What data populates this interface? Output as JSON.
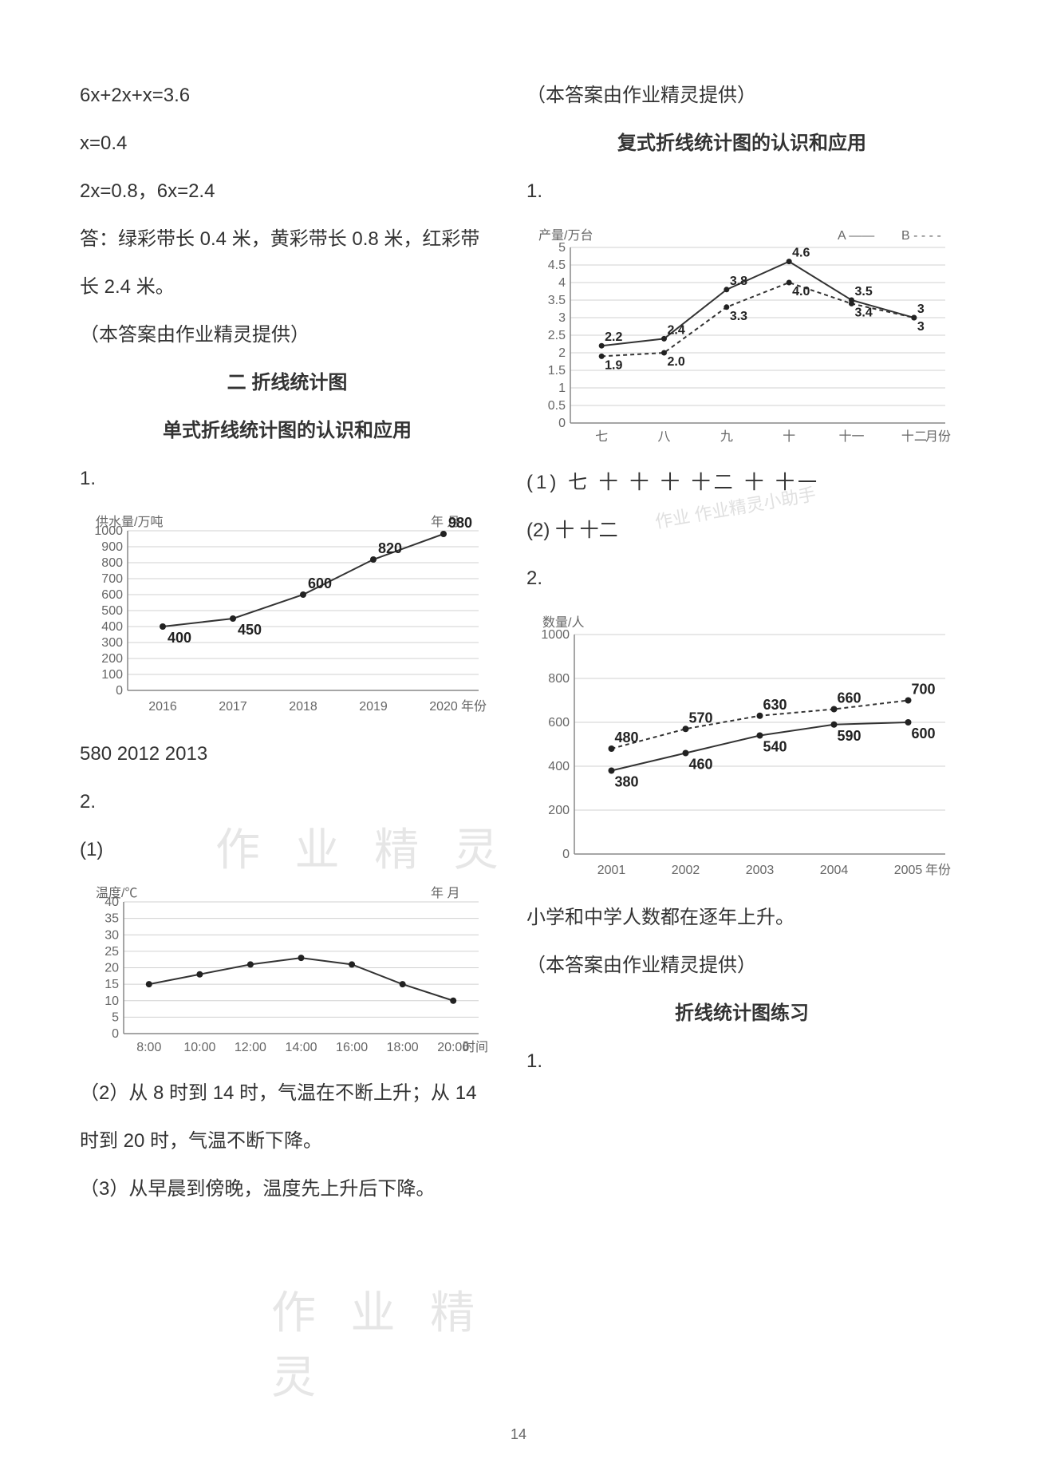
{
  "page_number": "14",
  "left": {
    "eq1": "6x+2x+x=3.6",
    "eq2": "x=0.4",
    "eq3": "2x=0.8，6x=2.4",
    "answer_line": "答：绿彩带长 0.4 米，黄彩带长 0.8 米，红彩带长 2.4 米。",
    "credit": "（本答案由作业精灵提供）",
    "heading": "二 折线统计图",
    "subheading": "单式折线统计图的认识和应用",
    "q1": "1.",
    "chart1": {
      "type": "line",
      "y_label": "供水量/万吨",
      "top_right": "年   月",
      "x_label": "年份",
      "ylim": [
        0,
        1000
      ],
      "ytick_step": 100,
      "yticks": [
        "0",
        "100",
        "200",
        "300",
        "400",
        "500",
        "600",
        "700",
        "800",
        "900",
        "1000"
      ],
      "categories": [
        "2016",
        "2017",
        "2018",
        "2019",
        "2020"
      ],
      "values": [
        400,
        450,
        600,
        820,
        980
      ],
      "value_labels": [
        "400",
        "450",
        "600",
        "820",
        "980"
      ],
      "line_color": "#333333",
      "grid_color": "#d0d0d0",
      "background_color": "#ffffff"
    },
    "after_chart1": "580   2012   2013",
    "q2": "2.",
    "q2_1": "(1)",
    "chart2": {
      "type": "line",
      "y_label": "温度/℃",
      "top_right": "年   月",
      "x_label": "时间",
      "ylim": [
        0,
        40
      ],
      "ytick_step": 5,
      "yticks": [
        "0",
        "5",
        "10",
        "15",
        "20",
        "25",
        "30",
        "35",
        "40"
      ],
      "categories": [
        "8:00",
        "10:00",
        "12:00",
        "14:00",
        "16:00",
        "18:00",
        "20:00"
      ],
      "values": [
        15,
        18,
        21,
        23,
        21,
        15,
        10
      ],
      "line_color": "#333333",
      "grid_color": "#d0d0d0",
      "background_color": "#ffffff"
    },
    "q2_2": "（2）从 8 时到 14 时，气温在不断上升；从 14 时到 20 时，气温不断下降。",
    "q2_3": "（3）从早晨到傍晚，温度先上升后下降。"
  },
  "right": {
    "credit": "（本答案由作业精灵提供）",
    "subheading1": "复式折线统计图的认识和应用",
    "q1": "1.",
    "chart3": {
      "type": "line",
      "y_label": "产量/万台",
      "x_label": "月份",
      "legend_a": "A ——",
      "legend_b": "B - - - -",
      "ylim": [
        0,
        5
      ],
      "ytick_step": 0.5,
      "yticks": [
        "0",
        "0.5",
        "1",
        "1.5",
        "2",
        "2.5",
        "3",
        "3.5",
        "4",
        "4.5",
        "5"
      ],
      "categories": [
        "七",
        "八",
        "九",
        "十",
        "十一",
        "十二"
      ],
      "series_a_values": [
        2.2,
        2.4,
        3.8,
        4.6,
        3.5,
        3
      ],
      "series_a_labels": [
        "2.2",
        "2.4",
        "3.8",
        "4.6",
        "3.5",
        "3"
      ],
      "series_b_values": [
        1.9,
        2.0,
        3.3,
        4.0,
        3.4,
        3
      ],
      "series_b_labels": [
        "1.9",
        "2.0",
        "3.3",
        "4.0",
        "3.4",
        "3"
      ],
      "line_color": "#333333"
    },
    "q1_ans1": "(1) 七   十   十   十   十二   十   十一",
    "q1_ans2": "(2) 十   十二",
    "q2": "2.",
    "chart4": {
      "type": "line",
      "y_label": "数量/人",
      "x_label": "年份",
      "ylim": [
        0,
        1000
      ],
      "yticks": [
        "0",
        "200",
        "400",
        "600",
        "800",
        "1000"
      ],
      "categories": [
        "2001",
        "2002",
        "2003",
        "2004",
        "2005"
      ],
      "series_a_values": [
        480,
        570,
        630,
        660,
        700
      ],
      "series_a_labels": [
        "480",
        "570",
        "630",
        "660",
        "700"
      ],
      "series_b_values": [
        380,
        460,
        540,
        590,
        600
      ],
      "series_b_labels": [
        "380",
        "460",
        "540",
        "590",
        "600"
      ],
      "line_color": "#333333"
    },
    "after_chart4": "小学和中学人数都在逐年上升。",
    "credit2": "（本答案由作业精灵提供）",
    "subheading2": "折线统计图练习",
    "q_last": "1."
  },
  "watermarks": {
    "wm1": "作 业 精 灵",
    "wm2": "作 业 精 灵",
    "stamp": "作业\n作业精灵小助手"
  }
}
